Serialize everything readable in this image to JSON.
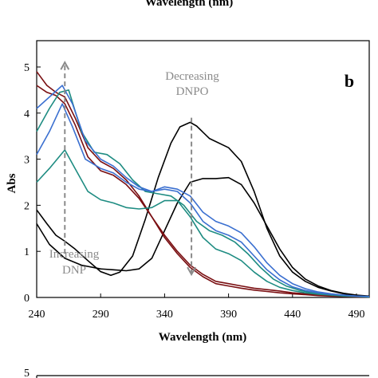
{
  "top_caption": "Wavelength (nm)",
  "chart_data": {
    "type": "line",
    "panel_label": "b",
    "xlabel": "Wavelength (nm)",
    "ylabel": "Abs",
    "xlim": [
      240,
      500
    ],
    "ylim": [
      0,
      5.5
    ],
    "xticks": [
      240,
      290,
      340,
      390,
      440,
      490
    ],
    "yticks": [
      0,
      1,
      2,
      3,
      4,
      5
    ],
    "grid": false,
    "legend": "none",
    "annotations": [
      {
        "lines": [
          "Decreasing",
          "DNPO"
        ],
        "arrow_x": 361,
        "arrow_from": 3.9,
        "arrow_to": 0.5,
        "direction": "down"
      },
      {
        "lines": [
          "Increasing",
          "DNP"
        ],
        "arrow_x": 262,
        "arrow_from": 0.95,
        "arrow_to": 5.1,
        "direction": "up"
      }
    ],
    "series": [
      {
        "color": "#000000",
        "x": [
          240,
          248,
          255,
          262,
          270,
          280,
          290,
          298,
          305,
          315,
          325,
          335,
          345,
          352,
          360,
          365,
          375,
          390,
          400,
          410,
          420,
          430,
          440,
          450,
          460,
          470,
          480,
          490,
          500
        ],
        "y": [
          1.9,
          1.6,
          1.35,
          1.22,
          1.05,
          0.8,
          0.56,
          0.48,
          0.55,
          0.9,
          1.7,
          2.6,
          3.35,
          3.7,
          3.8,
          3.72,
          3.45,
          3.25,
          2.95,
          2.3,
          1.5,
          0.9,
          0.55,
          0.35,
          0.22,
          0.14,
          0.08,
          0.04,
          0.02
        ]
      },
      {
        "color": "#000000",
        "x": [
          240,
          250,
          262,
          275,
          290,
          300,
          310,
          320,
          330,
          340,
          350,
          360,
          370,
          380,
          390,
          400,
          410,
          420,
          430,
          440,
          450,
          460,
          470,
          480,
          490,
          500
        ],
        "y": [
          1.6,
          1.15,
          0.85,
          0.7,
          0.62,
          0.6,
          0.58,
          0.62,
          0.85,
          1.45,
          2.05,
          2.5,
          2.58,
          2.58,
          2.6,
          2.45,
          2.05,
          1.55,
          1.05,
          0.65,
          0.4,
          0.25,
          0.15,
          0.09,
          0.05,
          0.03
        ]
      },
      {
        "color": "#7a0f12",
        "x": [
          240,
          248,
          255,
          262,
          270,
          280,
          290,
          300,
          310,
          320,
          330,
          340,
          350,
          360,
          370,
          380,
          390,
          400,
          410,
          420,
          430,
          440,
          450,
          460,
          470,
          480,
          490,
          500
        ],
        "y": [
          4.9,
          4.6,
          4.45,
          4.35,
          3.9,
          3.25,
          2.95,
          2.8,
          2.55,
          2.2,
          1.75,
          1.3,
          0.95,
          0.65,
          0.45,
          0.3,
          0.25,
          0.2,
          0.16,
          0.13,
          0.1,
          0.08,
          0.06,
          0.04,
          0.03,
          0.02,
          0.01,
          0.01
        ]
      },
      {
        "color": "#7a0f12",
        "x": [
          240,
          248,
          255,
          262,
          270,
          280,
          290,
          300,
          310,
          320,
          330,
          340,
          350,
          360,
          370,
          380,
          390,
          400,
          410,
          420,
          430,
          440,
          450,
          460,
          470,
          480,
          490,
          500
        ],
        "y": [
          4.6,
          4.45,
          4.38,
          4.2,
          3.75,
          3.05,
          2.75,
          2.65,
          2.45,
          2.15,
          1.75,
          1.35,
          1.0,
          0.7,
          0.5,
          0.35,
          0.3,
          0.25,
          0.2,
          0.17,
          0.14,
          0.1,
          0.08,
          0.06,
          0.04,
          0.03,
          0.02,
          0.01
        ]
      },
      {
        "color": "#1e8c82",
        "x": [
          240,
          250,
          262,
          270,
          280,
          290,
          300,
          310,
          320,
          330,
          340,
          350,
          360,
          370,
          380,
          390,
          400,
          410,
          420,
          430,
          440,
          450,
          460,
          470,
          480,
          490,
          500
        ],
        "y": [
          2.5,
          2.8,
          3.2,
          2.8,
          2.3,
          2.12,
          2.05,
          1.95,
          1.92,
          1.95,
          2.1,
          2.1,
          1.75,
          1.3,
          1.05,
          0.95,
          0.8,
          0.55,
          0.35,
          0.22,
          0.15,
          0.1,
          0.07,
          0.05,
          0.03,
          0.02,
          0.01
        ]
      },
      {
        "color": "#1e8c82",
        "x": [
          240,
          250,
          258,
          265,
          275,
          285,
          295,
          305,
          315,
          325,
          335,
          345,
          355,
          365,
          375,
          385,
          395,
          405,
          415,
          425,
          435,
          445,
          455,
          465,
          475,
          485,
          495,
          500
        ],
        "y": [
          3.6,
          4.1,
          4.45,
          4.5,
          3.6,
          3.15,
          3.1,
          2.9,
          2.55,
          2.3,
          2.25,
          2.2,
          2.0,
          1.65,
          1.45,
          1.35,
          1.2,
          0.95,
          0.65,
          0.4,
          0.25,
          0.16,
          0.1,
          0.07,
          0.05,
          0.03,
          0.02,
          0.01
        ]
      },
      {
        "color": "#3a6fd0",
        "x": [
          240,
          250,
          260,
          268,
          278,
          290,
          300,
          310,
          320,
          330,
          340,
          350,
          360,
          370,
          380,
          390,
          400,
          410,
          420,
          430,
          440,
          450,
          460,
          470,
          480,
          490,
          500
        ],
        "y": [
          4.1,
          4.35,
          4.6,
          4.2,
          3.4,
          3.0,
          2.85,
          2.6,
          2.4,
          2.3,
          2.35,
          2.3,
          2.05,
          1.65,
          1.45,
          1.35,
          1.2,
          0.9,
          0.6,
          0.38,
          0.23,
          0.15,
          0.1,
          0.07,
          0.05,
          0.03,
          0.02
        ]
      },
      {
        "color": "#3a6fd0",
        "x": [
          240,
          250,
          260,
          268,
          278,
          290,
          300,
          310,
          320,
          330,
          340,
          350,
          360,
          370,
          380,
          390,
          400,
          410,
          420,
          430,
          440,
          450,
          460,
          470,
          480,
          490,
          500
        ],
        "y": [
          3.1,
          3.6,
          4.2,
          3.7,
          3.0,
          2.8,
          2.7,
          2.5,
          2.35,
          2.3,
          2.4,
          2.35,
          2.2,
          1.85,
          1.65,
          1.55,
          1.4,
          1.1,
          0.75,
          0.48,
          0.3,
          0.19,
          0.12,
          0.08,
          0.05,
          0.03,
          0.02
        ]
      }
    ]
  },
  "bottom_partial": {
    "tick": "5"
  }
}
